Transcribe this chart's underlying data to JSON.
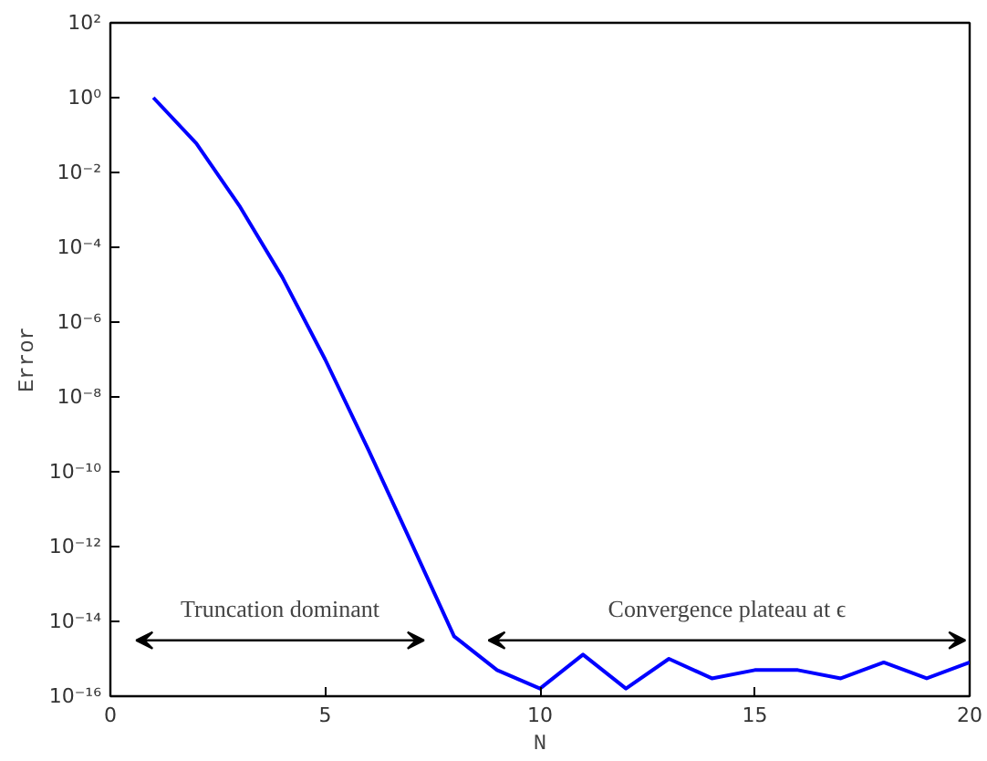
{
  "chart_data": {
    "type": "line",
    "xlabel": "N",
    "ylabel": "Error",
    "x": [
      1,
      2,
      3,
      4,
      5,
      6,
      7,
      8,
      9,
      10,
      11,
      12,
      13,
      14,
      15,
      16,
      17,
      18,
      19,
      20
    ],
    "series": [
      {
        "color": "#0000ff",
        "values": [
          1.0,
          0.06,
          0.0013,
          1.6e-05,
          1e-07,
          4e-10,
          1.3e-12,
          4e-15,
          5e-16,
          1.6e-16,
          1.3e-15,
          1.6e-16,
          1e-15,
          3e-16,
          5e-16,
          5e-16,
          3e-16,
          8e-16,
          3e-16,
          8e-16
        ]
      }
    ],
    "xlim": [
      0,
      20
    ],
    "ylim": [
      1e-16,
      100
    ],
    "xticks": [
      0,
      5,
      10,
      15,
      20
    ],
    "yticks": [
      {
        "value": 1e-16,
        "label": "10⁻¹⁶"
      },
      {
        "value": 1e-14,
        "label": "10⁻¹⁴"
      },
      {
        "value": 1e-12,
        "label": "10⁻¹²"
      },
      {
        "value": 1e-10,
        "label": "10⁻¹⁰"
      },
      {
        "value": 1e-08,
        "label": "10⁻⁸"
      },
      {
        "value": 1e-06,
        "label": "10⁻⁶"
      },
      {
        "value": 0.0001,
        "label": "10⁻⁴"
      },
      {
        "value": 0.01,
        "label": "10⁻²"
      },
      {
        "value": 1,
        "label": "10⁰"
      },
      {
        "value": 100,
        "label": "10²"
      }
    ],
    "log": "y",
    "grid": false,
    "line_style": "solid",
    "marker": "none",
    "annotations": [
      "Truncation dominant",
      "Convergence plateau at ϵ"
    ]
  }
}
